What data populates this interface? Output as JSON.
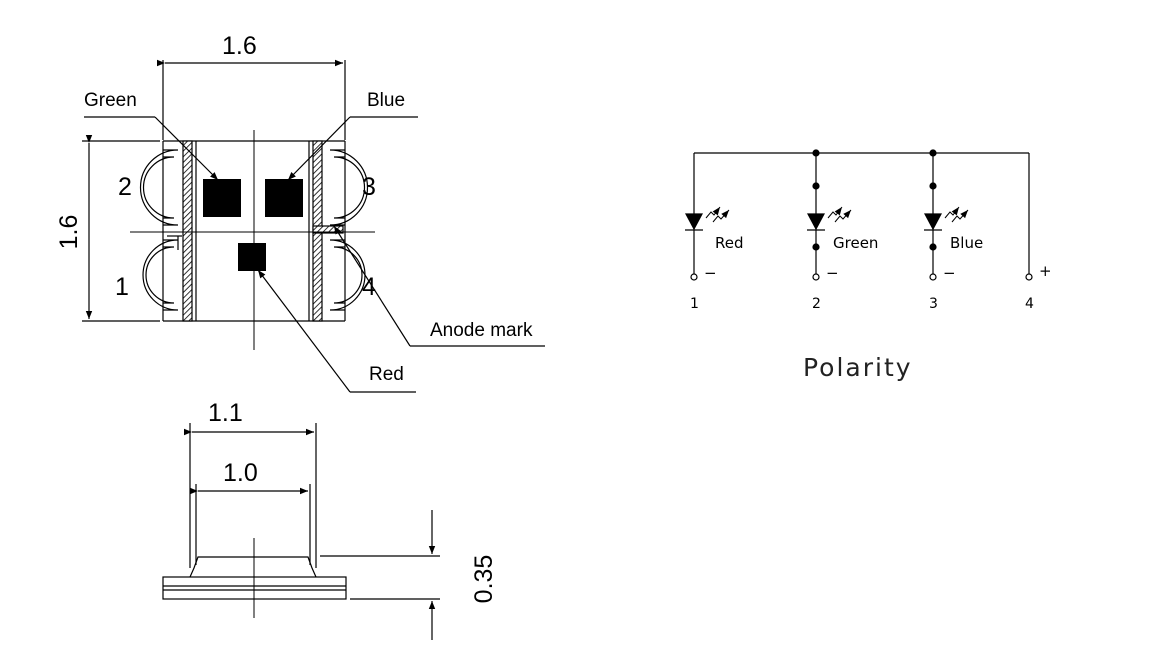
{
  "top_view": {
    "width_dim": "1.6",
    "height_dim": "1.6",
    "labels": {
      "green": "Green",
      "blue": "Blue",
      "red": "Red",
      "anode_mark": "Anode mark"
    },
    "pins": [
      "1",
      "2",
      "3",
      "4"
    ]
  },
  "side_view": {
    "outer_dim": "1.1",
    "inner_dim": "1.0",
    "height_dim": "0.35"
  },
  "schematic": {
    "title": "Polarity",
    "leds": [
      {
        "name": "Red",
        "pin": "1",
        "sign": "−"
      },
      {
        "name": "Green",
        "pin": "2",
        "sign": "−"
      },
      {
        "name": "Blue",
        "pin": "3",
        "sign": "−"
      }
    ],
    "anode": {
      "pin": "4",
      "sign": "+"
    }
  }
}
